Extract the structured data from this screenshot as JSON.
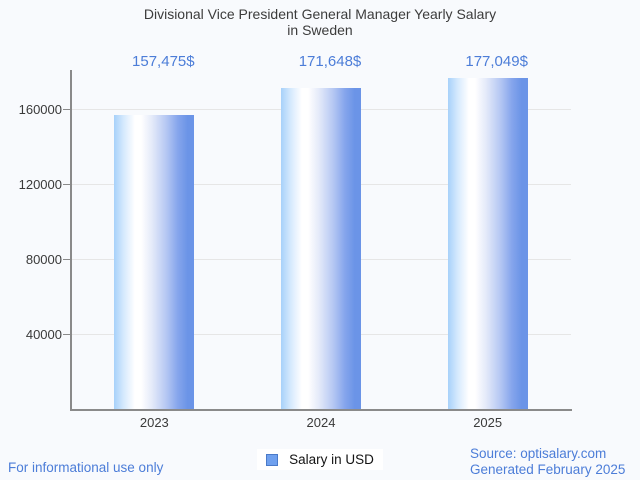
{
  "header": {
    "title_line1": "Divisional Vice President General Manager Yearly Salary",
    "title_line2": "in Sweden"
  },
  "chart_data": {
    "type": "bar",
    "title": "Divisional Vice President General Manager Yearly Salary in Sweden",
    "categories": [
      "2023",
      "2024",
      "2025"
    ],
    "series": [
      {
        "name": "Salary in USD",
        "values": [
          157475,
          171648,
          177049
        ]
      }
    ],
    "value_labels": [
      "157,475$",
      "171,648$",
      "177,049$"
    ],
    "xlabel": "",
    "ylabel": "",
    "yticks": [
      40000,
      80000,
      120000,
      160000
    ],
    "ytick_labels": [
      "40000",
      "80000",
      "120000",
      "160000"
    ],
    "ylim": [
      0,
      181333
    ],
    "grid": true,
    "legend_position": "bottom",
    "bar_color_left": "#a7d1fa",
    "bar_color_mid": "#ffffff",
    "bar_color_right": "#6b94e7"
  },
  "legend": {
    "label": "Salary in USD",
    "marker_color": "#6fa0ee"
  },
  "footer": {
    "disclaimer": "For informational use only",
    "source": "Source: optisalary.com",
    "generated": "Generated February 2025"
  },
  "colors": {
    "accent_blue_text": "#4c7dd8",
    "title_text": "#3c3c3c",
    "axis_text": "#3a3a3a",
    "axis_line": "#8a8a8a",
    "gridline": "#e6e6e6",
    "background": "#f8fafd",
    "legend_border": "#4a7ac8"
  }
}
